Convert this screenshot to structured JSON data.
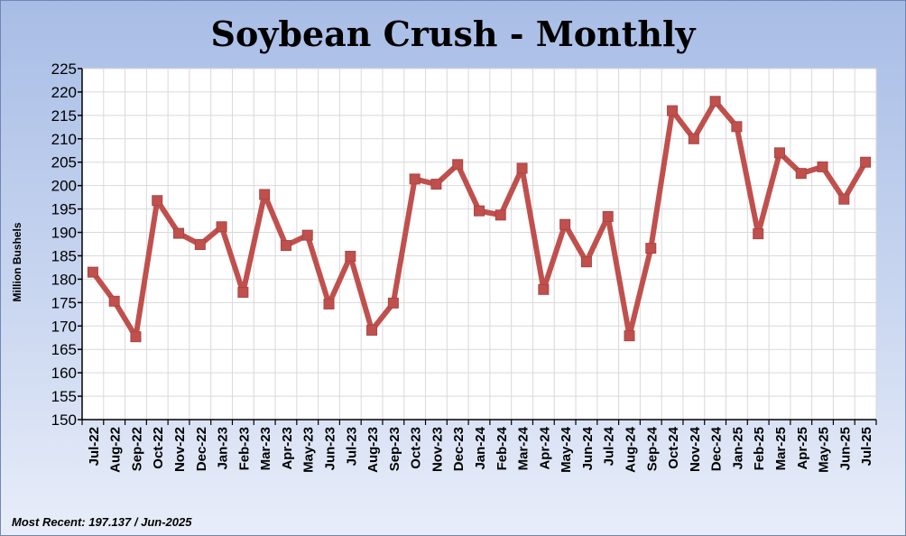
{
  "chart_data": {
    "type": "line",
    "title": "Soybean Crush - Monthly",
    "ylabel": "Million Bushels",
    "xlabel": "",
    "ylim": [
      150,
      225
    ],
    "yticks": [
      150,
      155,
      160,
      165,
      170,
      175,
      180,
      185,
      190,
      195,
      200,
      205,
      210,
      215,
      220,
      225
    ],
    "grid": true,
    "legend": "none",
    "categories": [
      "Jul-22",
      "Aug-22",
      "Sep-22",
      "Oct-22",
      "Nov-22",
      "Dec-22",
      "Jan-23",
      "Feb-23",
      "Mar-23",
      "Apr-23",
      "May-23",
      "Jun-23",
      "Jul-23",
      "Aug-23",
      "Sep-23",
      "Oct-23",
      "Nov-23",
      "Dec-23",
      "Jan-24",
      "Feb-24",
      "Mar-24",
      "Apr-24",
      "May-24",
      "Jun-24",
      "Jul-24",
      "Aug-24",
      "Sep-24",
      "Oct-24",
      "Nov-24",
      "Dec-24",
      "Jan-25",
      "Feb-25",
      "Mar-25",
      "Apr-25",
      "May-25",
      "Jun-25",
      "Jul-25"
    ],
    "series": [
      {
        "values": [
          181.5,
          175.3,
          167.7,
          196.8,
          189.8,
          187.4,
          191.2,
          177.2,
          198.1,
          187.2,
          189.4,
          174.7,
          184.9,
          169.1,
          174.9,
          201.4,
          200.3,
          204.5,
          194.6,
          193.7,
          203.7,
          177.8,
          191.7,
          183.7,
          193.4,
          167.9,
          186.6,
          216.0,
          210.0,
          218.0,
          212.6,
          189.7,
          207.0,
          202.6,
          204.0,
          197.1,
          205.0
        ],
        "color": "#c0504d"
      }
    ]
  },
  "footnote": {
    "label": "Most Recent:",
    "value": "197.137",
    "period": "/ Jun-2025"
  },
  "colors": {
    "background_top": "#a8bde6",
    "background_bottom": "#e8edf9",
    "plot_background": "#ffffff",
    "grid": "#d9d9d9",
    "line": "#c0504d"
  }
}
